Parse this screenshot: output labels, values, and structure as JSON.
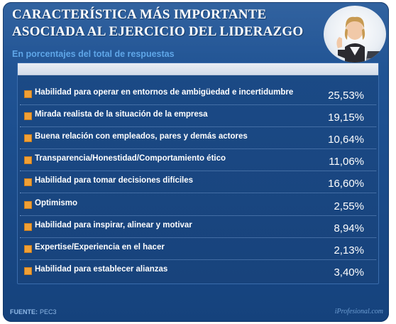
{
  "header": {
    "title_line1": "CARACTERÍSTICA MÁS IMPORTANTE",
    "title_line2": "ASOCIADA AL EJERCICIO DEL LIDERAZGO",
    "subtitle": "En porcentajes del total de respuestas"
  },
  "chart_data": {
    "type": "table",
    "title": "CARACTERÍSTICA MÁS IMPORTANTE ASOCIADA AL EJERCICIO DEL LIDERAZGO",
    "subtitle": "En porcentajes del total de respuestas",
    "categories": [
      "Habilidad para operar en entornos de ambigüedad e incertidumbre",
      "Mirada realista de la situación de la empresa",
      "Buena relación con empleados, pares y demás actores",
      "Transparencia/Honestidad/Comportamiento ético",
      "Habilidad para tomar decisiones difíciles",
      "Optimismo",
      "Habilidad para inspirar, alinear y motivar",
      "Expertise/Experiencia en el hacer",
      "Habilidad para establecer alianzas"
    ],
    "values": [
      25.53,
      19.15,
      10.64,
      11.06,
      16.6,
      2.55,
      8.94,
      2.13,
      3.4
    ],
    "value_labels": [
      "25,53%",
      "19,15%",
      "10,64%",
      "11,06%",
      "16,60%",
      "2,55%",
      "8,94%",
      "2,13%",
      "3,40%"
    ]
  },
  "footer": {
    "source_label": "FUENTE:",
    "source_value": "PEC3",
    "brand": "iProfesional.com"
  },
  "colors": {
    "background": "#1d4f8f",
    "bullet": "#f0a036",
    "subtitle": "#5fa6e8",
    "text": "#ffffff"
  },
  "icons": {
    "photo": "businesswoman-photo",
    "bullet": "orange-square-bullet"
  }
}
